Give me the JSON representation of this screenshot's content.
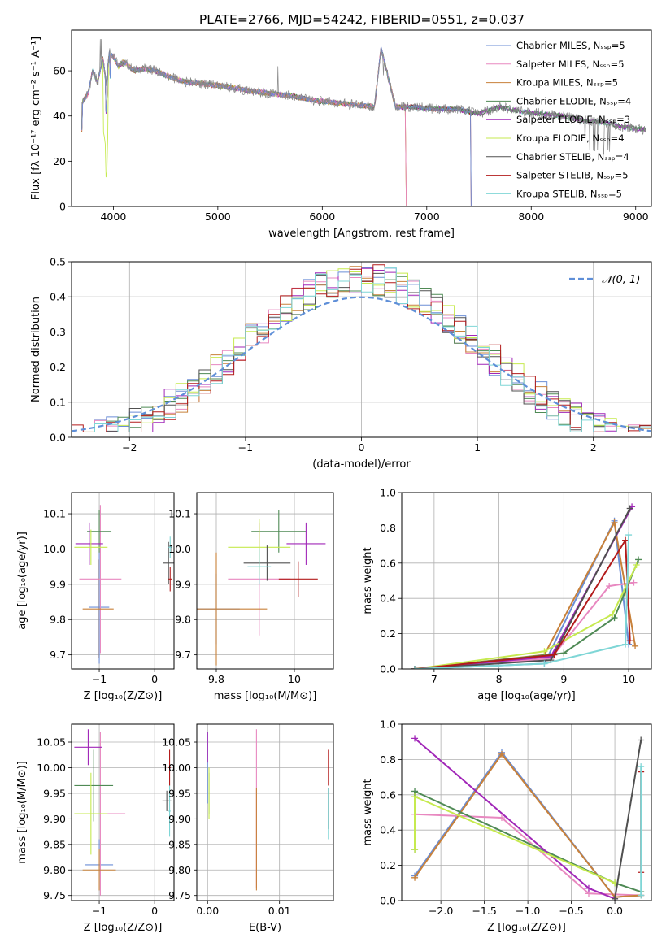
{
  "figure": {
    "title": "PLATE=2766, MJD=54242, FIBERID=0551, z=0.037"
  },
  "colors": [
    "#6b8ed6",
    "#e888c0",
    "#c8813a",
    "#4f8a55",
    "#a127b8",
    "#c6ea4f",
    "#505050",
    "#b31b1b",
    "#7fd6d6"
  ],
  "legend_labels": [
    "Chabrier MILES, Nₛₛₚ=5",
    "Salpeter MILES, Nₛₛₚ=5",
    "Kroupa MILES, Nₛₛₚ=5",
    "Chabrier ELODIE, Nₛₛₚ=4",
    "Salpeter ELODIE, Nₛₛₚ=3",
    "Kroupa ELODIE, Nₛₛₚ=4",
    "Chabrier STELIB, Nₛₛₚ=4",
    "Salpeter STELIB, Nₛₛₚ=5",
    "Kroupa STELIB, Nₛₛₚ=5"
  ],
  "chart_data": [
    {
      "id": "spectrum",
      "type": "line",
      "xlabel": "wavelength [Angstrom, rest frame]",
      "ylabel": "Flux [fλ 10⁻¹⁷ erg cm⁻² s⁻¹ A⁻¹]",
      "xlim": [
        3600,
        9150
      ],
      "ylim": [
        0,
        78
      ],
      "xticks": [
        4000,
        5000,
        6000,
        7000,
        8000,
        9000
      ],
      "yticks": [
        0,
        20,
        40,
        60
      ],
      "series": [
        {
          "name": "data",
          "wave": [
            3700,
            3760,
            3800,
            3850,
            3900,
            3930,
            3960,
            4000,
            4050,
            4100,
            4200,
            4300,
            4400,
            4500,
            4700,
            4900,
            5100,
            5300,
            5500,
            5700,
            5900,
            6100,
            6300,
            6500,
            6562,
            6700,
            6900,
            7100,
            7300,
            7500,
            7700,
            7900,
            8100,
            8300,
            8500,
            8700,
            8900,
            9100
          ],
          "flux": [
            46,
            50,
            60,
            55,
            66,
            54,
            68,
            66,
            62,
            64,
            60,
            61,
            60,
            58,
            55,
            54,
            53,
            51,
            50,
            49,
            47,
            46,
            45,
            44,
            70,
            44,
            44,
            43,
            43,
            41,
            44,
            42,
            41,
            40,
            38,
            37,
            35,
            34
          ]
        }
      ],
      "dropouts": [
        3935,
        6800,
        7420
      ]
    },
    {
      "id": "residuals",
      "type": "line",
      "xlabel": "(data-model)/error",
      "ylabel": "Normed distribution",
      "xlim": [
        -2.5,
        2.5
      ],
      "ylim": [
        0,
        0.5
      ],
      "xticks": [
        -2,
        -1,
        0,
        1,
        2
      ],
      "yticks": [
        0.0,
        0.1,
        0.2,
        0.3,
        0.4,
        0.5
      ],
      "legend": "𝒩(0, 1)",
      "gaussian": {
        "mu": 0,
        "sigma": 1
      }
    },
    {
      "id": "age_vs_Z",
      "type": "scatter",
      "xlabel": "Z [log₁₀(Z/Z⊙)]",
      "ylabel": "age  [log₁₀(age/yr)]",
      "xlim": [
        -1.5,
        0.35
      ],
      "ylim": [
        9.66,
        10.16
      ],
      "xticks": [
        -1,
        0
      ],
      "yticks": [
        9.7,
        9.8,
        9.9,
        10.0,
        10.1
      ],
      "points": [
        {
          "x": -1.0,
          "y": 9.835,
          "xerr": 0.18,
          "yerr": 0.16
        },
        {
          "x": -0.98,
          "y": 9.915,
          "xerr": 0.38,
          "yerr": 0.21
        },
        {
          "x": -1.02,
          "y": 9.83,
          "xerr": 0.28,
          "yerr": 0.14
        },
        {
          "x": -1.0,
          "y": 10.05,
          "xerr": 0.22,
          "yerr": 0.06
        },
        {
          "x": -1.18,
          "y": 10.015,
          "xerr": 0.25,
          "yerr": 0.06
        },
        {
          "x": -1.15,
          "y": 10.005,
          "xerr": 0.3,
          "yerr": 0.05
        },
        {
          "x": 0.25,
          "y": 9.96,
          "xerr": 0.1,
          "yerr": 0.06
        },
        {
          "x": 0.28,
          "y": 9.915,
          "xerr": 0.03,
          "yerr": 0.035
        },
        {
          "x": 0.28,
          "y": 10.005,
          "xerr": 0.03,
          "yerr": 0.03
        }
      ]
    },
    {
      "id": "age_vs_mass",
      "type": "scatter",
      "xlabel": "mass [log₁₀(M/M⊙)]",
      "ylabel": "",
      "xlim": [
        9.75,
        10.1
      ],
      "ylim": [
        9.66,
        10.16
      ],
      "xticks": [
        9.8,
        10.0
      ],
      "yticks": [
        9.7,
        9.8,
        9.9,
        10.0,
        10.1
      ],
      "points": [
        {
          "x": 9.8,
          "y": 9.83,
          "xerr": 0.06,
          "yerr": 0.1
        },
        {
          "x": 9.91,
          "y": 9.915,
          "xerr": 0.08,
          "yerr": 0.16
        },
        {
          "x": 9.8,
          "y": 9.83,
          "xerr": 0.13,
          "yerr": 0.16
        },
        {
          "x": 9.96,
          "y": 10.05,
          "xerr": 0.07,
          "yerr": 0.06
        },
        {
          "x": 10.03,
          "y": 10.015,
          "xerr": 0.05,
          "yerr": 0.06
        },
        {
          "x": 9.91,
          "y": 10.005,
          "xerr": 0.08,
          "yerr": 0.08
        },
        {
          "x": 9.93,
          "y": 9.96,
          "xerr": 0.06,
          "yerr": 0.05
        },
        {
          "x": 10.01,
          "y": 9.915,
          "xerr": 0.05,
          "yerr": 0.05
        },
        {
          "x": 9.91,
          "y": 9.95,
          "xerr": 0.03,
          "yerr": 0.05
        }
      ]
    },
    {
      "id": "massweight_vs_age",
      "type": "line",
      "xlabel": "age  [log₁₀(age/yr)]",
      "ylabel": "mass weight",
      "xlim": [
        6.5,
        10.35
      ],
      "ylim": [
        0,
        1
      ],
      "xticks": [
        7,
        8,
        9,
        10
      ],
      "yticks": [
        0.0,
        0.2,
        0.4,
        0.6,
        0.8,
        1.0
      ],
      "series": [
        {
          "x": [
            6.7,
            8.7,
            9.78,
            10.0
          ],
          "y": [
            0.0,
            0.03,
            0.84,
            0.14
          ]
        },
        {
          "x": [
            6.7,
            8.8,
            9.7,
            10.08
          ],
          "y": [
            0.0,
            0.06,
            0.47,
            0.49
          ]
        },
        {
          "x": [
            6.7,
            8.7,
            9.78,
            10.1
          ],
          "y": [
            0.0,
            0.08,
            0.83,
            0.13
          ]
        },
        {
          "x": [
            6.7,
            9.0,
            9.78,
            10.15
          ],
          "y": [
            0.0,
            0.09,
            0.29,
            0.62
          ]
        },
        {
          "x": [
            6.7,
            8.8,
            10.05
          ],
          "y": [
            0.0,
            0.07,
            0.92
          ]
        },
        {
          "x": [
            6.7,
            8.7,
            9.75,
            10.12
          ],
          "y": [
            0.0,
            0.1,
            0.31,
            0.59
          ]
        },
        {
          "x": [
            6.7,
            8.8,
            10.02
          ],
          "y": [
            0.0,
            0.05,
            0.91
          ]
        },
        {
          "x": [
            6.7,
            8.85,
            9.95,
            10.02
          ],
          "y": [
            0.0,
            0.08,
            0.73,
            0.16
          ]
        },
        {
          "x": [
            6.7,
            8.7,
            9.95,
            10.0
          ],
          "y": [
            0.0,
            0.03,
            0.14,
            0.76
          ]
        }
      ]
    },
    {
      "id": "mass_vs_Z",
      "type": "scatter",
      "xlabel": "Z [log₁₀(Z/Z⊙)]",
      "ylabel": "mass [log₁₀(M/M⊙)]",
      "xlim": [
        -1.5,
        0.35
      ],
      "ylim": [
        9.74,
        10.085
      ],
      "xticks": [
        -1,
        0
      ],
      "yticks": [
        9.75,
        9.8,
        9.85,
        9.9,
        9.95,
        10.0,
        10.05
      ],
      "points": [
        {
          "x": -1.0,
          "y": 9.81,
          "xerr": 0.25,
          "yerr": 0.05
        },
        {
          "x": -0.98,
          "y": 9.91,
          "xerr": 0.45,
          "yerr": 0.16
        },
        {
          "x": -1.0,
          "y": 9.8,
          "xerr": 0.3,
          "yerr": 0.04
        },
        {
          "x": -1.1,
          "y": 9.965,
          "xerr": 0.35,
          "yerr": 0.07
        },
        {
          "x": -1.2,
          "y": 10.04,
          "xerr": 0.25,
          "yerr": 0.035
        },
        {
          "x": -1.15,
          "y": 9.91,
          "xerr": 0.3,
          "yerr": 0.08
        },
        {
          "x": 0.22,
          "y": 9.935,
          "xerr": 0.08,
          "yerr": 0.02
        },
        {
          "x": 0.27,
          "y": 10.0,
          "xerr": 0.02,
          "yerr": 0.035
        },
        {
          "x": 0.27,
          "y": 9.915,
          "xerr": 0.02,
          "yerr": 0.05
        }
      ]
    },
    {
      "id": "mass_vs_ebv",
      "type": "scatter",
      "xlabel": "E(B-V)",
      "ylabel": "",
      "xlim": [
        -0.0015,
        0.0175
      ],
      "ylim": [
        9.74,
        10.085
      ],
      "xticks": [
        0.0,
        0.01
      ],
      "yticks": [
        9.75,
        9.8,
        9.85,
        9.9,
        9.95,
        10.0,
        10.05
      ],
      "points": [
        {
          "x": 0.0,
          "y": 10.0,
          "xerr": 0,
          "yerr": 0.07
        },
        {
          "x": 0.0068,
          "y": 9.92,
          "xerr": 0,
          "yerr": 0.155
        },
        {
          "x": 0.0068,
          "y": 9.86,
          "xerr": 0,
          "yerr": 0.1
        },
        {
          "x": 0.0002,
          "y": 9.95,
          "xerr": 0,
          "yerr": 0.04
        },
        {
          "x": 0.0,
          "y": 10.04,
          "xerr": 0,
          "yerr": 0.03
        },
        {
          "x": 0.0002,
          "y": 9.95,
          "xerr": 0,
          "yerr": 0.05
        },
        {
          "x": 0.0168,
          "y": 9.92,
          "xerr": 0,
          "yerr": 0.04
        },
        {
          "x": 0.0168,
          "y": 10.0,
          "xerr": 0,
          "yerr": 0.035
        },
        {
          "x": 0.0168,
          "y": 9.91,
          "xerr": 0,
          "yerr": 0.05
        }
      ]
    },
    {
      "id": "massweight_vs_Z",
      "type": "line",
      "xlabel": "Z [log₁₀(Z/Z⊙)]",
      "ylabel": "mass weight",
      "xlim": [
        -2.45,
        0.42
      ],
      "ylim": [
        0,
        1
      ],
      "xticks": [
        -2.0,
        -1.5,
        -1.0,
        -0.5,
        0.0
      ],
      "yticks": [
        0.0,
        0.2,
        0.4,
        0.6,
        0.8,
        1.0
      ],
      "series": [
        {
          "x": [
            -2.3,
            -1.3,
            0.0,
            0.3
          ],
          "y": [
            0.14,
            0.84,
            0.02,
            0.03
          ]
        },
        {
          "x": [
            -2.3,
            -1.3,
            -0.3,
            0.3
          ],
          "y": [
            0.49,
            0.47,
            0.04,
            0.03
          ]
        },
        {
          "x": [
            -2.3,
            -1.3,
            0.0,
            0.3
          ],
          "y": [
            0.13,
            0.83,
            0.02,
            0.03
          ]
        },
        {
          "x": [
            -2.3,
            -2.3,
            0.0,
            0.3
          ],
          "y": [
            0.29,
            0.62,
            0.1,
            0.05
          ]
        },
        {
          "x": [
            -2.3,
            -0.3,
            0.0
          ],
          "y": [
            0.92,
            0.07,
            0.01
          ]
        },
        {
          "x": [
            -2.3,
            -2.3,
            0.0
          ],
          "y": [
            0.29,
            0.59,
            0.1
          ]
        },
        {
          "x": [
            0.0,
            0.3
          ],
          "y": [
            0.01,
            0.91
          ]
        },
        {
          "x": [
            0.3,
            0.3
          ],
          "y": [
            0.16,
            0.73
          ]
        },
        {
          "x": [
            0.3,
            0.3
          ],
          "y": [
            0.03,
            0.76
          ]
        }
      ]
    }
  ]
}
